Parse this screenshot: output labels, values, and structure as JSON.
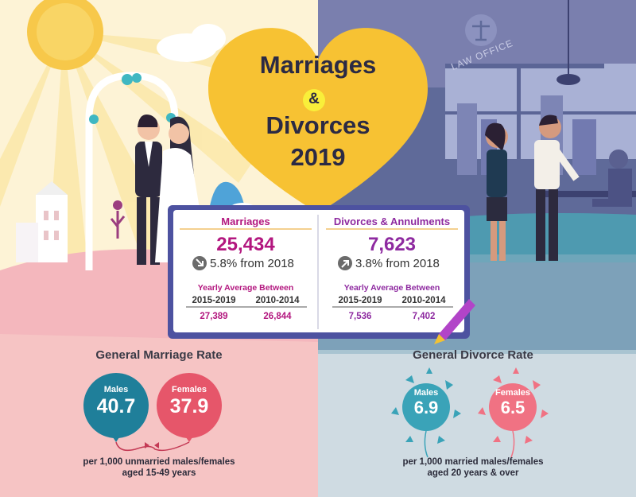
{
  "title": {
    "line1": "Marriages",
    "amp": "&",
    "line2": "Divorces",
    "year": "2019"
  },
  "law_office": "LAW OFFICE",
  "colors": {
    "marriage_accent": "#b3177f",
    "divorce_accent": "#8e2aa0",
    "heart": "#f7c233",
    "males_balloon": "#1f7f9a",
    "females_balloon": "#e6566a"
  },
  "marriages_panel": {
    "title": "Marriages",
    "total": "25,434",
    "change": "5.8% from 2018",
    "change_icon": "down-arrow-icon",
    "avg_label": "Yearly Average Between",
    "years": [
      "2015-2019",
      "2010-2014"
    ],
    "averages": [
      "27,389",
      "26,844"
    ]
  },
  "divorces_panel": {
    "title": "Divorces & Annulments",
    "total": "7,623",
    "change": "3.8% from 2018",
    "change_icon": "up-arrow-icon",
    "avg_label": "Yearly Average Between",
    "years": [
      "2015-2019",
      "2010-2014"
    ],
    "averages": [
      "7,536",
      "7,402"
    ]
  },
  "marriage_rate": {
    "title": "General Marriage Rate",
    "males_label": "Males",
    "males_value": "40.7",
    "females_label": "Females",
    "females_value": "37.9",
    "note_line1": "per 1,000 unmarried males/females",
    "note_line2": "aged 15-49 years"
  },
  "divorce_rate": {
    "title": "General Divorce Rate",
    "males_label": "Males",
    "males_value": "6.9",
    "females_label": "Females",
    "females_value": "6.5",
    "note_line1": "per 1,000 married males/females",
    "note_line2": "aged 20 years & over"
  }
}
